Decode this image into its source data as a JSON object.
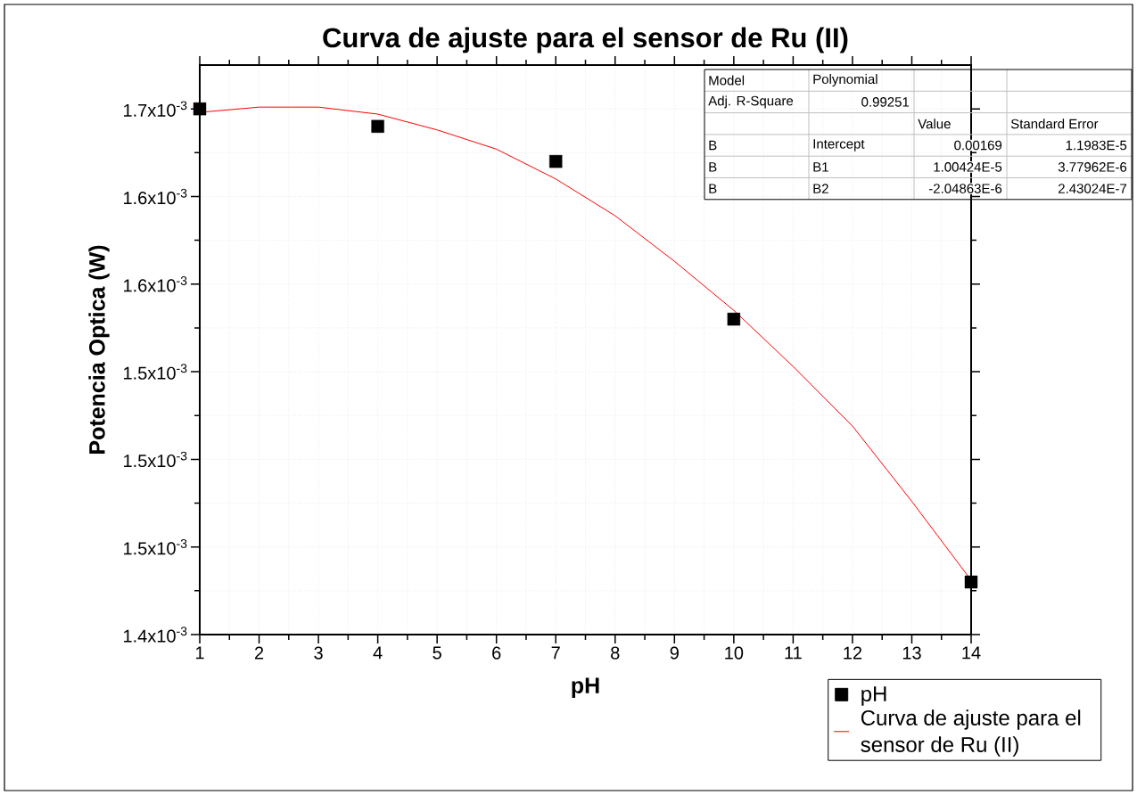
{
  "chart_data": {
    "type": "scatter",
    "title": "Curva de ajuste para el sensor de Ru (II)",
    "xlabel": "pH",
    "ylabel": "Potencia Optica (W)",
    "xlim": [
      1,
      14
    ],
    "ylim": [
      0.0014,
      0.001725
    ],
    "xticks": [
      1,
      2,
      3,
      4,
      5,
      6,
      7,
      8,
      9,
      10,
      11,
      12,
      13,
      14
    ],
    "yticks": [
      {
        "value": 0.0014,
        "label": "1.4x10$^{-3}$"
      },
      {
        "value": 0.00145,
        "label": "1.5x10$^{-3}$"
      },
      {
        "value": 0.0015,
        "label": "1.5x10$^{-3}$"
      },
      {
        "value": 0.00155,
        "label": "1.5x10$^{-3}$"
      },
      {
        "value": 0.0016,
        "label": "1.6x10$^{-3}$"
      },
      {
        "value": 0.00165,
        "label": "1.6x10$^{-3}$"
      },
      {
        "value": 0.0017,
        "label": "1.7x10$^{-3}$"
      }
    ],
    "grid": true,
    "legend": "bottom right",
    "series": [
      {
        "name": "pH",
        "type": "scatter",
        "color": "#000000",
        "marker": "square",
        "x": [
          1,
          4,
          7,
          10,
          14
        ],
        "values": [
          0.0017,
          0.00169,
          0.00167,
          0.00158,
          0.00143
        ]
      },
      {
        "name": "Curva de ajuste para el sensor de Ru (II)",
        "type": "line",
        "color": "#ff0000",
        "marker": "none",
        "line_style": "solid",
        "x": [
          1,
          2,
          3,
          4,
          5,
          6,
          7,
          8,
          9,
          10,
          11,
          12,
          13,
          14
        ],
        "values": [
          0.001698,
          0.001701,
          0.001701,
          0.001697,
          0.001688,
          0.001677,
          0.00166,
          0.001639,
          0.001613,
          0.001585,
          0.001553,
          0.001519,
          0.001476,
          0.001431
        ]
      }
    ],
    "annotations": [
      "Model",
      "Polynomial",
      "Adj. R-Square",
      "0.99251",
      "Value",
      "Standard Error",
      "B",
      "Intercept",
      "0.00169",
      "1.1983E-5",
      "B",
      "B1",
      "1.00424E-5",
      "3.77962E-6",
      "B",
      "B2",
      "-2.04863E-6",
      "2.43024E-7"
    ]
  }
}
